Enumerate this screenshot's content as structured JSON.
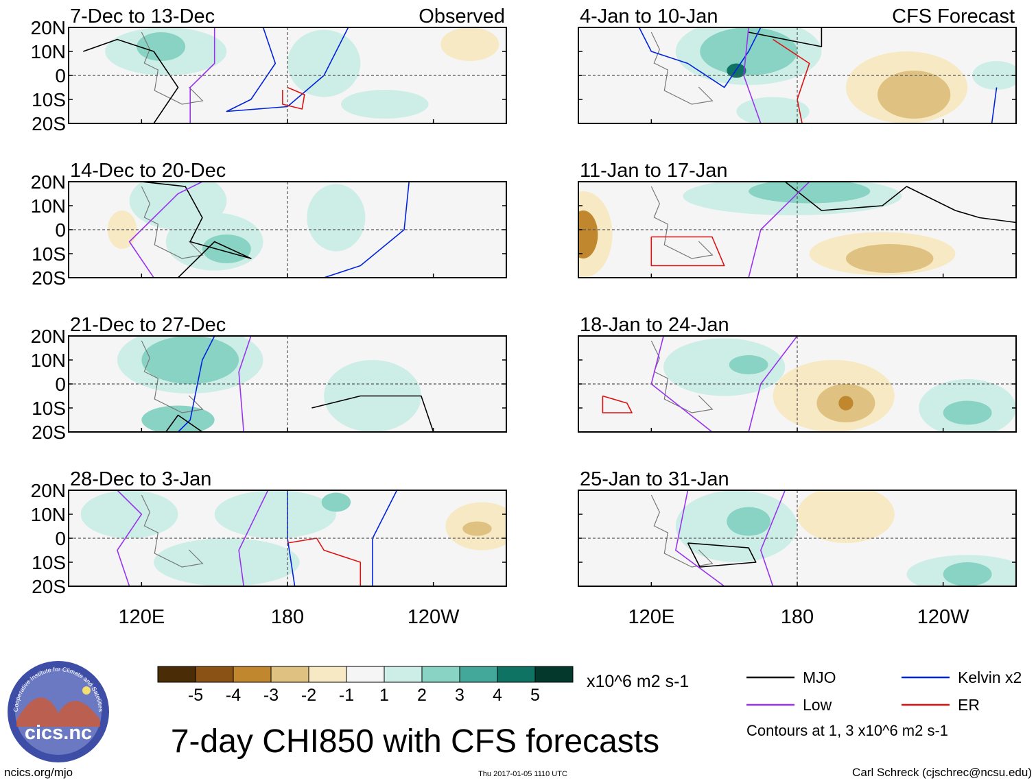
{
  "chart_data": {
    "type": "contour_map_panels",
    "title": "7-day CHI850 with CFS forecasts",
    "columns": [
      {
        "header": "Observed",
        "panels": [
          {
            "date_range": "7-Dec to 13-Dec"
          },
          {
            "date_range": "14-Dec to 20-Dec"
          },
          {
            "date_range": "21-Dec to 27-Dec"
          },
          {
            "date_range": "28-Dec to 3-Jan"
          }
        ]
      },
      {
        "header": "CFS Forecast",
        "panels": [
          {
            "date_range": "4-Jan to 10-Jan"
          },
          {
            "date_range": "11-Jan to 17-Jan"
          },
          {
            "date_range": "18-Jan to 24-Jan"
          },
          {
            "date_range": "25-Jan to 31-Jan"
          }
        ]
      }
    ],
    "latitude_ticks": [
      "20N",
      "10N",
      "0",
      "10S",
      "20S"
    ],
    "latitude_values": [
      20,
      10,
      0,
      -10,
      -20
    ],
    "longitude_ticks": [
      "120E",
      "180",
      "120W"
    ],
    "longitude_values": [
      120,
      180,
      240
    ],
    "lon_range": [
      90,
      270
    ],
    "lat_range": [
      -20,
      20
    ],
    "reference_lines": {
      "equator": 0,
      "dateline": 180
    },
    "colorbar": {
      "tick_labels": [
        "-5",
        "-4",
        "-3",
        "-2",
        "-1",
        "1",
        "2",
        "3",
        "4",
        "5"
      ],
      "units": "x10^6 m2 s-1",
      "colors": [
        "#4a2c06",
        "#8a5214",
        "#c0872e",
        "#dfc281",
        "#f6e9c4",
        "#f5f5f5",
        "#cdeee6",
        "#88d3c4",
        "#43a899",
        "#0f7363",
        "#05382c"
      ]
    },
    "legend": [
      {
        "label": "MJO",
        "color": "#000000"
      },
      {
        "label": "Kelvin x2",
        "color": "#0022dd"
      },
      {
        "label": "Low",
        "color": "#9933ee"
      },
      {
        "label": "ER",
        "color": "#dd1111"
      }
    ],
    "contour_note": "Contours at 1, 3 x10^6 m2 s-1"
  },
  "footer": {
    "logo_text": "cics.nc",
    "logo_ring_text": "Cooperative Institute for Climate and Satellites",
    "url": "ncics.org/mjo",
    "timestamp": "Thu 2017-01-05 1110 UTC",
    "credit": "Carl Schreck (cjschrec@ncsu.edu)"
  }
}
